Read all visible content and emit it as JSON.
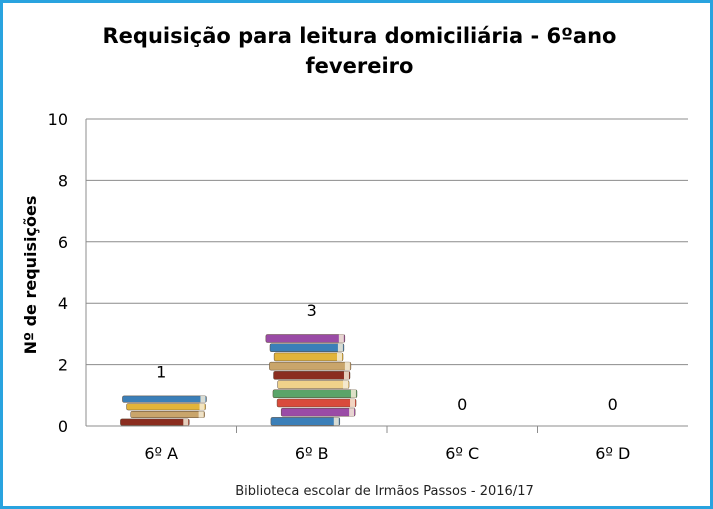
{
  "chart_data": {
    "type": "bar",
    "title_line1": "Requisição para leitura domiciliária  - 6ºano",
    "title_line2": "fevereiro",
    "xlabel": "",
    "ylabel": "Nº de requisições",
    "categories": [
      "6º A",
      "6º B",
      "6º C",
      "6º D"
    ],
    "values": [
      1,
      3,
      0,
      0
    ],
    "ylim": [
      0,
      10
    ],
    "yticks": [
      0,
      2,
      4,
      6,
      8,
      10
    ],
    "grid": true,
    "bar_style": "stacked-books-image",
    "source_note": "Biblioteca escolar de Irmãos Passos - 2016/17"
  },
  "colors": {
    "frame_border": "#29a3df",
    "grid": "#8c8c8c",
    "book_palette": [
      "#8b2d1f",
      "#c9a56b",
      "#e2b43a",
      "#3b7fb8",
      "#9a4ba6",
      "#d94b3c",
      "#5aa469",
      "#f0d28a"
    ]
  }
}
